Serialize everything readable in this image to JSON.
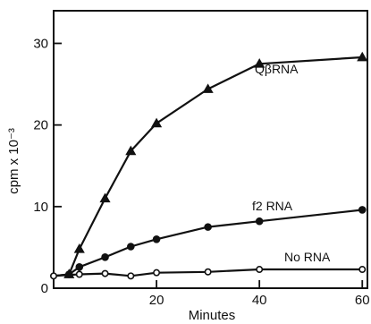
{
  "chart_data": {
    "type": "line",
    "xlabel": "Minutes",
    "ylabel": "cpm x 10⁻³",
    "xlim": [
      0,
      61
    ],
    "ylim": [
      0,
      34
    ],
    "x_ticks": [
      20,
      40,
      60
    ],
    "y_ticks": [
      0,
      10,
      20,
      30
    ],
    "x_tick_labels": [
      "20",
      "40",
      "60"
    ],
    "y_tick_labels": [
      "0",
      "10",
      "20",
      "30"
    ],
    "grid": false,
    "legend": "none",
    "series": [
      {
        "name": "QβRNA",
        "marker": "filled-triangle",
        "points": [
          [
            0,
            1.5
          ],
          [
            3,
            1.7
          ],
          [
            5,
            4.8
          ],
          [
            10,
            11
          ],
          [
            15,
            16.8
          ],
          [
            20,
            20.2
          ],
          [
            30,
            24.4
          ],
          [
            40,
            27.5
          ],
          [
            60,
            28.3
          ]
        ]
      },
      {
        "name": "f2 RNA",
        "marker": "filled-circle",
        "points": [
          [
            0,
            1.5
          ],
          [
            3,
            1.7
          ],
          [
            5,
            2.6
          ],
          [
            10,
            3.8
          ],
          [
            15,
            5.1
          ],
          [
            20,
            6.0
          ],
          [
            30,
            7.5
          ],
          [
            40,
            8.2
          ],
          [
            60,
            9.6
          ]
        ]
      },
      {
        "name": "No RNA",
        "marker": "open-circle",
        "points": [
          [
            0,
            1.5
          ],
          [
            5,
            1.7
          ],
          [
            10,
            1.8
          ],
          [
            15,
            1.5
          ],
          [
            20,
            1.9
          ],
          [
            30,
            2.0
          ],
          [
            40,
            2.3
          ],
          [
            60,
            2.3
          ]
        ]
      }
    ]
  }
}
